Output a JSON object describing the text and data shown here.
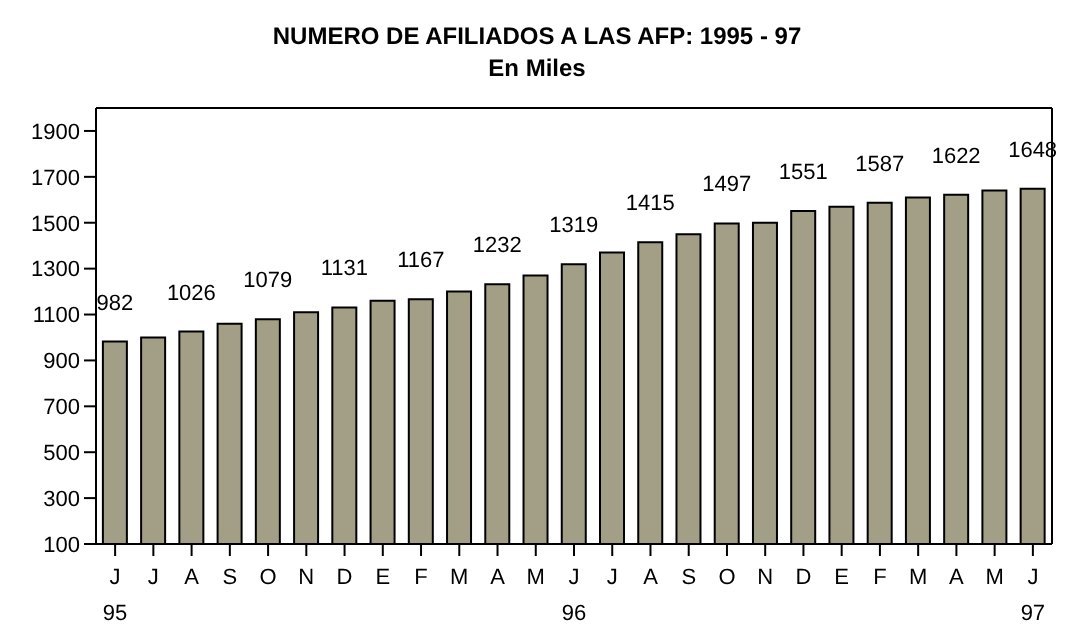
{
  "chart_data": {
    "type": "bar",
    "title": "NUMERO DE AFILIADOS A LAS AFP: 1995 - 97",
    "subtitle": "En Miles",
    "categories": [
      "J\n95",
      "J",
      "A",
      "S",
      "O",
      "N",
      "D",
      "E",
      "F",
      "M",
      "A",
      "M",
      "J\n96",
      "J",
      "A",
      "S",
      "O",
      "N",
      "D",
      "E",
      "F",
      "M",
      "A",
      "M",
      "J\n97"
    ],
    "values": [
      982,
      1000,
      1026,
      1060,
      1079,
      1110,
      1131,
      1160,
      1167,
      1200,
      1232,
      1270,
      1319,
      1370,
      1415,
      1450,
      1497,
      1500,
      1551,
      1570,
      1587,
      1610,
      1622,
      1640,
      1648
    ],
    "value_labels": [
      "982",
      null,
      "1026",
      null,
      "1079",
      null,
      "1131",
      null,
      "1167",
      null,
      "1232",
      null,
      "1319",
      null,
      "1415",
      null,
      "1497",
      null,
      "1551",
      null,
      "1587",
      null,
      "1622",
      null,
      "1648"
    ],
    "color": "#a39f86",
    "ylim": [
      100,
      2000
    ],
    "yticks": [
      100,
      300,
      500,
      700,
      900,
      1100,
      1300,
      1500,
      1700,
      1900
    ],
    "grid": false
  }
}
